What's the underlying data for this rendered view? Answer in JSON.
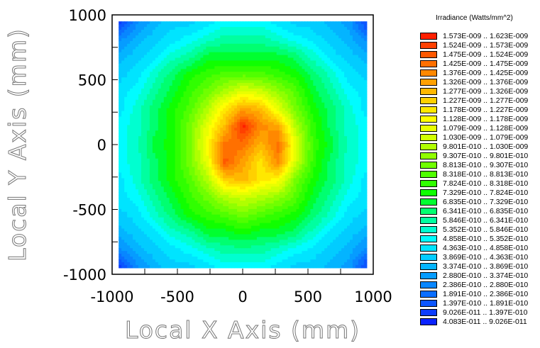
{
  "chart_data": {
    "type": "heatmap",
    "xlabel": "Local X Axis (mm)",
    "ylabel": "Local Y Axis (mm)",
    "xlim": [
      -1000,
      1000
    ],
    "ylim": [
      -1000,
      1000
    ],
    "xticks": [
      "-1000",
      "-500",
      "0",
      "500",
      "1000"
    ],
    "yticks": [
      "1000",
      "500",
      "0",
      "-500",
      "-1000"
    ],
    "xtick_values": [
      -1000,
      -500,
      0,
      500,
      1000
    ],
    "ytick_values": [
      1000,
      500,
      0,
      -500,
      -1000
    ],
    "grid_extent_mm": [
      -950,
      950
    ],
    "grid_note": "level indices 0..31 into legend (0 = lowest), rows top (y=+950) to bottom (y=-950), columns left to right",
    "grid_levels": [
      [
        1,
        4,
        6,
        7,
        7,
        8,
        9,
        9,
        9,
        8,
        7,
        7,
        6,
        5,
        1
      ],
      [
        4,
        6,
        7,
        8,
        9,
        10,
        11,
        11,
        11,
        10,
        9,
        8,
        7,
        6,
        4
      ],
      [
        6,
        7,
        8,
        10,
        11,
        13,
        13,
        13,
        13,
        13,
        12,
        10,
        8,
        7,
        6
      ],
      [
        7,
        8,
        10,
        12,
        14,
        15,
        16,
        16,
        16,
        15,
        14,
        12,
        10,
        8,
        7
      ],
      [
        8,
        9,
        11,
        13,
        15,
        17,
        19,
        21,
        20,
        18,
        16,
        13,
        11,
        9,
        8
      ],
      [
        8,
        10,
        12,
        14,
        16,
        19,
        23,
        26,
        25,
        21,
        17,
        14,
        12,
        10,
        8
      ],
      [
        9,
        10,
        12,
        14,
        17,
        21,
        25,
        31,
        27,
        26,
        19,
        15,
        12,
        10,
        9
      ],
      [
        9,
        10,
        13,
        14,
        17,
        22,
        28,
        28,
        25,
        28,
        21,
        15,
        13,
        10,
        9
      ],
      [
        9,
        10,
        12,
        14,
        17,
        21,
        29,
        26,
        23,
        27,
        20,
        15,
        12,
        10,
        9
      ],
      [
        8,
        10,
        12,
        14,
        16,
        19,
        24,
        25,
        23,
        22,
        17,
        14,
        12,
        10,
        8
      ],
      [
        8,
        9,
        11,
        13,
        15,
        17,
        19,
        20,
        19,
        18,
        16,
        13,
        11,
        9,
        8
      ],
      [
        7,
        8,
        10,
        12,
        14,
        15,
        16,
        17,
        16,
        15,
        14,
        12,
        10,
        8,
        7
      ],
      [
        6,
        7,
        8,
        10,
        11,
        13,
        13,
        14,
        13,
        13,
        12,
        10,
        8,
        7,
        6
      ],
      [
        4,
        6,
        7,
        8,
        9,
        10,
        11,
        11,
        11,
        10,
        9,
        8,
        7,
        6,
        4
      ],
      [
        1,
        4,
        6,
        7,
        7,
        8,
        9,
        9,
        9,
        8,
        7,
        7,
        6,
        5,
        1
      ]
    ],
    "legend": {
      "title": "Irradiance (Watts/mm^2)",
      "placement": "right",
      "entries": [
        {
          "label": "1.573E-009 .. 1.623E-009",
          "color": "#ff2000"
        },
        {
          "label": "1.524E-009 .. 1.573E-009",
          "color": "#ff4000"
        },
        {
          "label": "1.475E-009 .. 1.524E-009",
          "color": "#ff5800"
        },
        {
          "label": "1.425E-009 .. 1.475E-009",
          "color": "#ff7000"
        },
        {
          "label": "1.376E-009 .. 1.425E-009",
          "color": "#ff8800"
        },
        {
          "label": "1.326E-009 .. 1.376E-009",
          "color": "#ffa000"
        },
        {
          "label": "1.277E-009 .. 1.326E-009",
          "color": "#ffb800"
        },
        {
          "label": "1.227E-009 .. 1.277E-009",
          "color": "#ffd000"
        },
        {
          "label": "1.178E-009 .. 1.227E-009",
          "color": "#ffe800"
        },
        {
          "label": "1.128E-009 .. 1.178E-009",
          "color": "#ffff00"
        },
        {
          "label": "1.079E-009 .. 1.128E-009",
          "color": "#e8ff00"
        },
        {
          "label": "1.030E-009 .. 1.079E-009",
          "color": "#d0ff00"
        },
        {
          "label": "9.801E-010 .. 1.030E-009",
          "color": "#b0ff00"
        },
        {
          "label": "9.307E-010 .. 9.801E-010",
          "color": "#90ff00"
        },
        {
          "label": "8.813E-010 .. 9.307E-010",
          "color": "#70ff00"
        },
        {
          "label": "8.318E-010 .. 8.813E-010",
          "color": "#50ff00"
        },
        {
          "label": "7.824E-010 .. 8.318E-010",
          "color": "#30ff00"
        },
        {
          "label": "7.329E-010 .. 7.824E-010",
          "color": "#10ff00"
        },
        {
          "label": "6.835E-010 .. 7.329E-010",
          "color": "#00ff30"
        },
        {
          "label": "6.341E-010 .. 6.835E-010",
          "color": "#00ff70"
        },
        {
          "label": "5.846E-010 .. 6.341E-010",
          "color": "#00ffa0"
        },
        {
          "label": "5.352E-010 .. 5.846E-010",
          "color": "#00ffd0"
        },
        {
          "label": "4.858E-010 .. 5.352E-010",
          "color": "#00fcff"
        },
        {
          "label": "4.363E-010 .. 4.858E-010",
          "color": "#00e4ff"
        },
        {
          "label": "3.869E-010 .. 4.363E-010",
          "color": "#02ccff"
        },
        {
          "label": "3.374E-010 .. 3.869E-010",
          "color": "#04b4ff"
        },
        {
          "label": "2.880E-010 .. 3.374E-010",
          "color": "#069cff"
        },
        {
          "label": "2.386E-010 .. 2.880E-010",
          "color": "#0886ff"
        },
        {
          "label": "1.891E-010 .. 2.386E-010",
          "color": "#0a6eff"
        },
        {
          "label": "1.397E-010 .. 1.891E-010",
          "color": "#0c56ff"
        },
        {
          "label": "9.026E-011 .. 1.397E-010",
          "color": "#0c3cff"
        },
        {
          "label": "4.083E-011 .. 9.026E-011",
          "color": "#0a22ff"
        }
      ]
    }
  }
}
